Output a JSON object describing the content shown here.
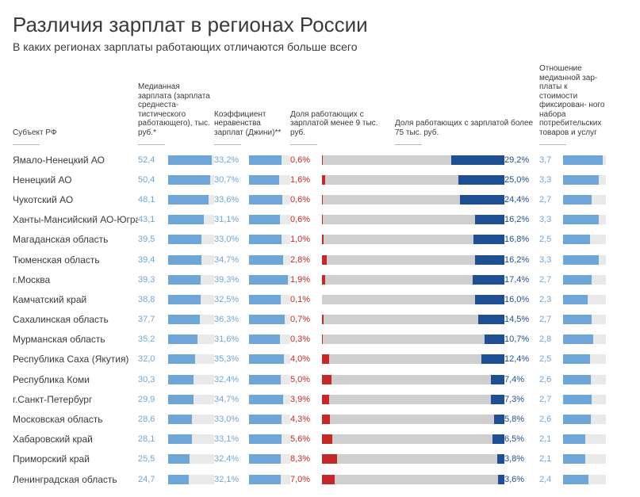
{
  "title": "Различия зарплат в регионах России",
  "subtitle": "В каких регионах зарплаты работающих отличаются больше всего",
  "title_fontsize": 26,
  "title_color": "#3a3a3a",
  "subtitle_fontsize": 14,
  "subtitle_color": "#3a3a3a",
  "row_fontsize": 12,
  "header_fontsize": 10,
  "value_fontsize": 11,
  "layout": {
    "name_w": 158,
    "col1_val_w": 38,
    "col1_bar_w": 58,
    "col2_val_w": 44,
    "col2_bar_w": 52,
    "col3_val_w": 40,
    "stacked_w": 230,
    "col4_val_w": 44,
    "col5_val_w": 30,
    "col5_bar_w": 54
  },
  "colors": {
    "light_blue": "#6ea6d8",
    "dark_blue": "#1f4f93",
    "red": "#c62828",
    "grey_bar": "#cfcfcf",
    "grey_bg": "#e9e9e9",
    "row_alt": "#ffffff",
    "text": "#3a3a3a"
  },
  "headers": {
    "name": "Субъект РФ",
    "col1": "Медианная зарплата (зарплата среднеста-\nтистического работающего), тыс. руб.*",
    "col2": "Коэффициент неравенства зарплат (Джини)**",
    "col3": "Доля работающих с зарплатой менее 9 тыс. руб.",
    "col4": "Доля работающих с зарплатой более 75 тыс. руб.",
    "col5": "Отношение медианной зар-\nплаты к стоимости фиксирован-\nного набора потребительских товаров и услуг"
  },
  "col1_max": 55,
  "col2_max": 42,
  "col5_max": 4.0,
  "rows": [
    {
      "name": "Ямало-Ненецкий АО",
      "median": 52.4,
      "gini": 33.2,
      "low": 0.6,
      "high": 29.2,
      "ratio": 3.7
    },
    {
      "name": "Ненецкий АО",
      "median": 50.4,
      "gini": 30.7,
      "low": 1.6,
      "high": 25.0,
      "ratio": 3.3
    },
    {
      "name": "Чукотский АО",
      "median": 48.1,
      "gini": 33.6,
      "low": 0.6,
      "high": 24.4,
      "ratio": 2.7
    },
    {
      "name": "Ханты-Мансийский АО-Югра",
      "median": 43.1,
      "gini": 31.1,
      "low": 0.6,
      "high": 16.2,
      "ratio": 3.3
    },
    {
      "name": "Магаданская область",
      "median": 39.5,
      "gini": 33.0,
      "low": 1.0,
      "high": 16.8,
      "ratio": 2.5
    },
    {
      "name": "Тюменская область",
      "median": 39.4,
      "gini": 34.7,
      "low": 2.8,
      "high": 16.2,
      "ratio": 3.3
    },
    {
      "name": "г.Москва",
      "median": 39.3,
      "gini": 39.3,
      "low": 1.9,
      "high": 17.4,
      "ratio": 2.7
    },
    {
      "name": "Камчатский край",
      "median": 38.8,
      "gini": 32.5,
      "low": 0.1,
      "high": 16.0,
      "ratio": 2.3
    },
    {
      "name": "Сахалинская область",
      "median": 37.7,
      "gini": 36.3,
      "low": 0.7,
      "high": 14.5,
      "ratio": 2.7
    },
    {
      "name": "Мурманская область",
      "median": 35.2,
      "gini": 31.6,
      "low": 0.3,
      "high": 10.7,
      "ratio": 2.8
    },
    {
      "name": "Республика Саха (Якутия)",
      "median": 32.0,
      "gini": 35.3,
      "low": 4.0,
      "high": 12.4,
      "ratio": 2.5
    },
    {
      "name": "Республика Коми",
      "median": 30.3,
      "gini": 32.4,
      "low": 5.0,
      "high": 7.4,
      "ratio": 2.6
    },
    {
      "name": "г.Санкт-Петербург",
      "median": 29.9,
      "gini": 34.7,
      "low": 3.9,
      "high": 7.3,
      "ratio": 2.7
    },
    {
      "name": "Московская область",
      "median": 28.6,
      "gini": 33.0,
      "low": 4.3,
      "high": 5.8,
      "ratio": 2.6
    },
    {
      "name": "Хабаровский край",
      "median": 28.1,
      "gini": 33.1,
      "low": 5.6,
      "high": 6.5,
      "ratio": 2.1
    },
    {
      "name": "Приморский край",
      "median": 25.5,
      "gini": 32.4,
      "low": 8.3,
      "high": 3.8,
      "ratio": 2.1
    },
    {
      "name": "Ленинградская область",
      "median": 24.7,
      "gini": 32.1,
      "low": 7.0,
      "high": 3.6,
      "ratio": 2.4
    }
  ]
}
